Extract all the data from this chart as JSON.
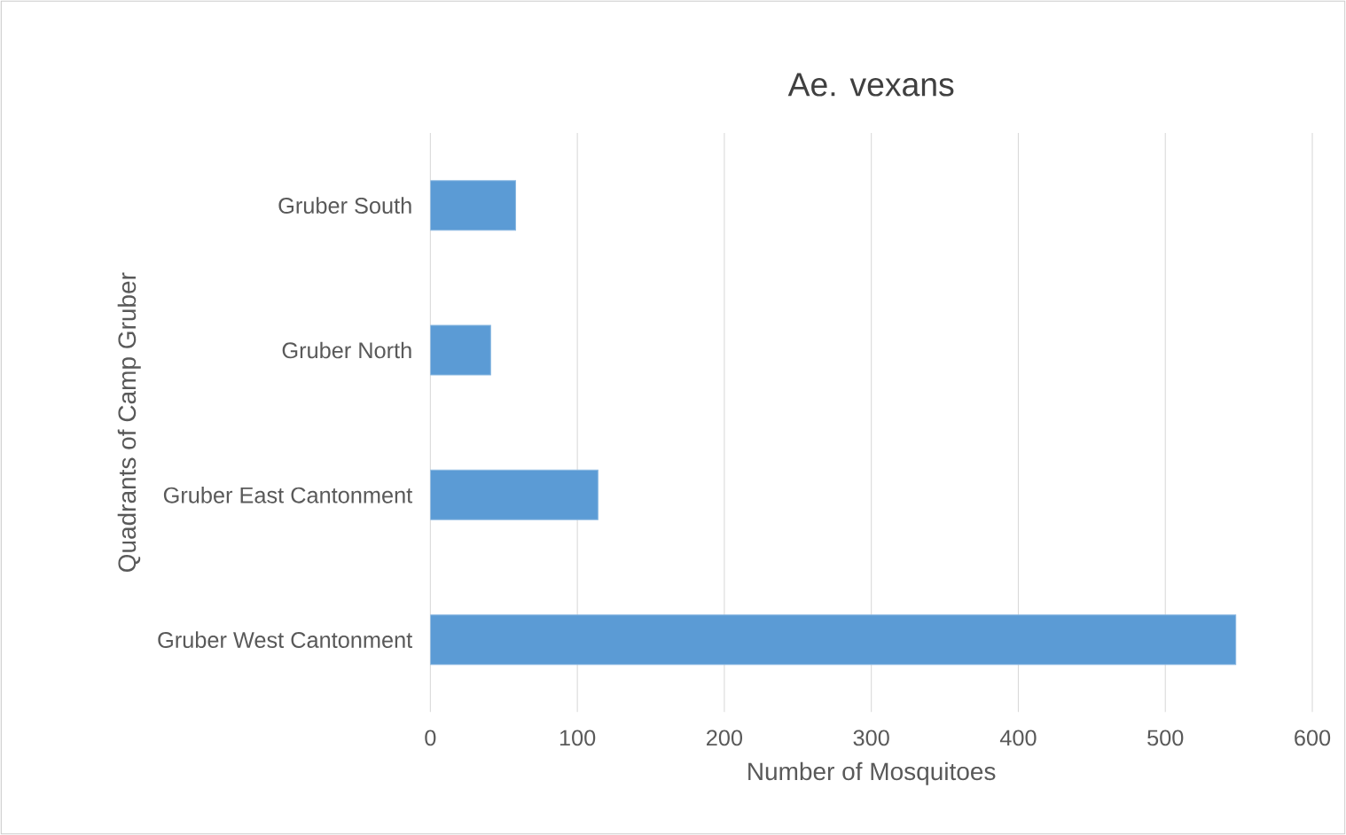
{
  "chart_data": {
    "type": "bar",
    "orientation": "horizontal",
    "title": "Ae. vexans",
    "xlabel": "Number of Mosquitoes",
    "ylabel": "Quadrants of Camp Gruber",
    "categories": [
      "Gruber South",
      "Gruber North",
      "Gruber East Cantonment",
      "Gruber West Cantonment"
    ],
    "values": [
      58,
      41,
      114,
      548
    ],
    "color": "#5b9bd5",
    "xlim": [
      0,
      600
    ],
    "xticks": [
      0,
      100,
      200,
      300,
      400,
      500,
      600
    ],
    "grid": "x"
  }
}
